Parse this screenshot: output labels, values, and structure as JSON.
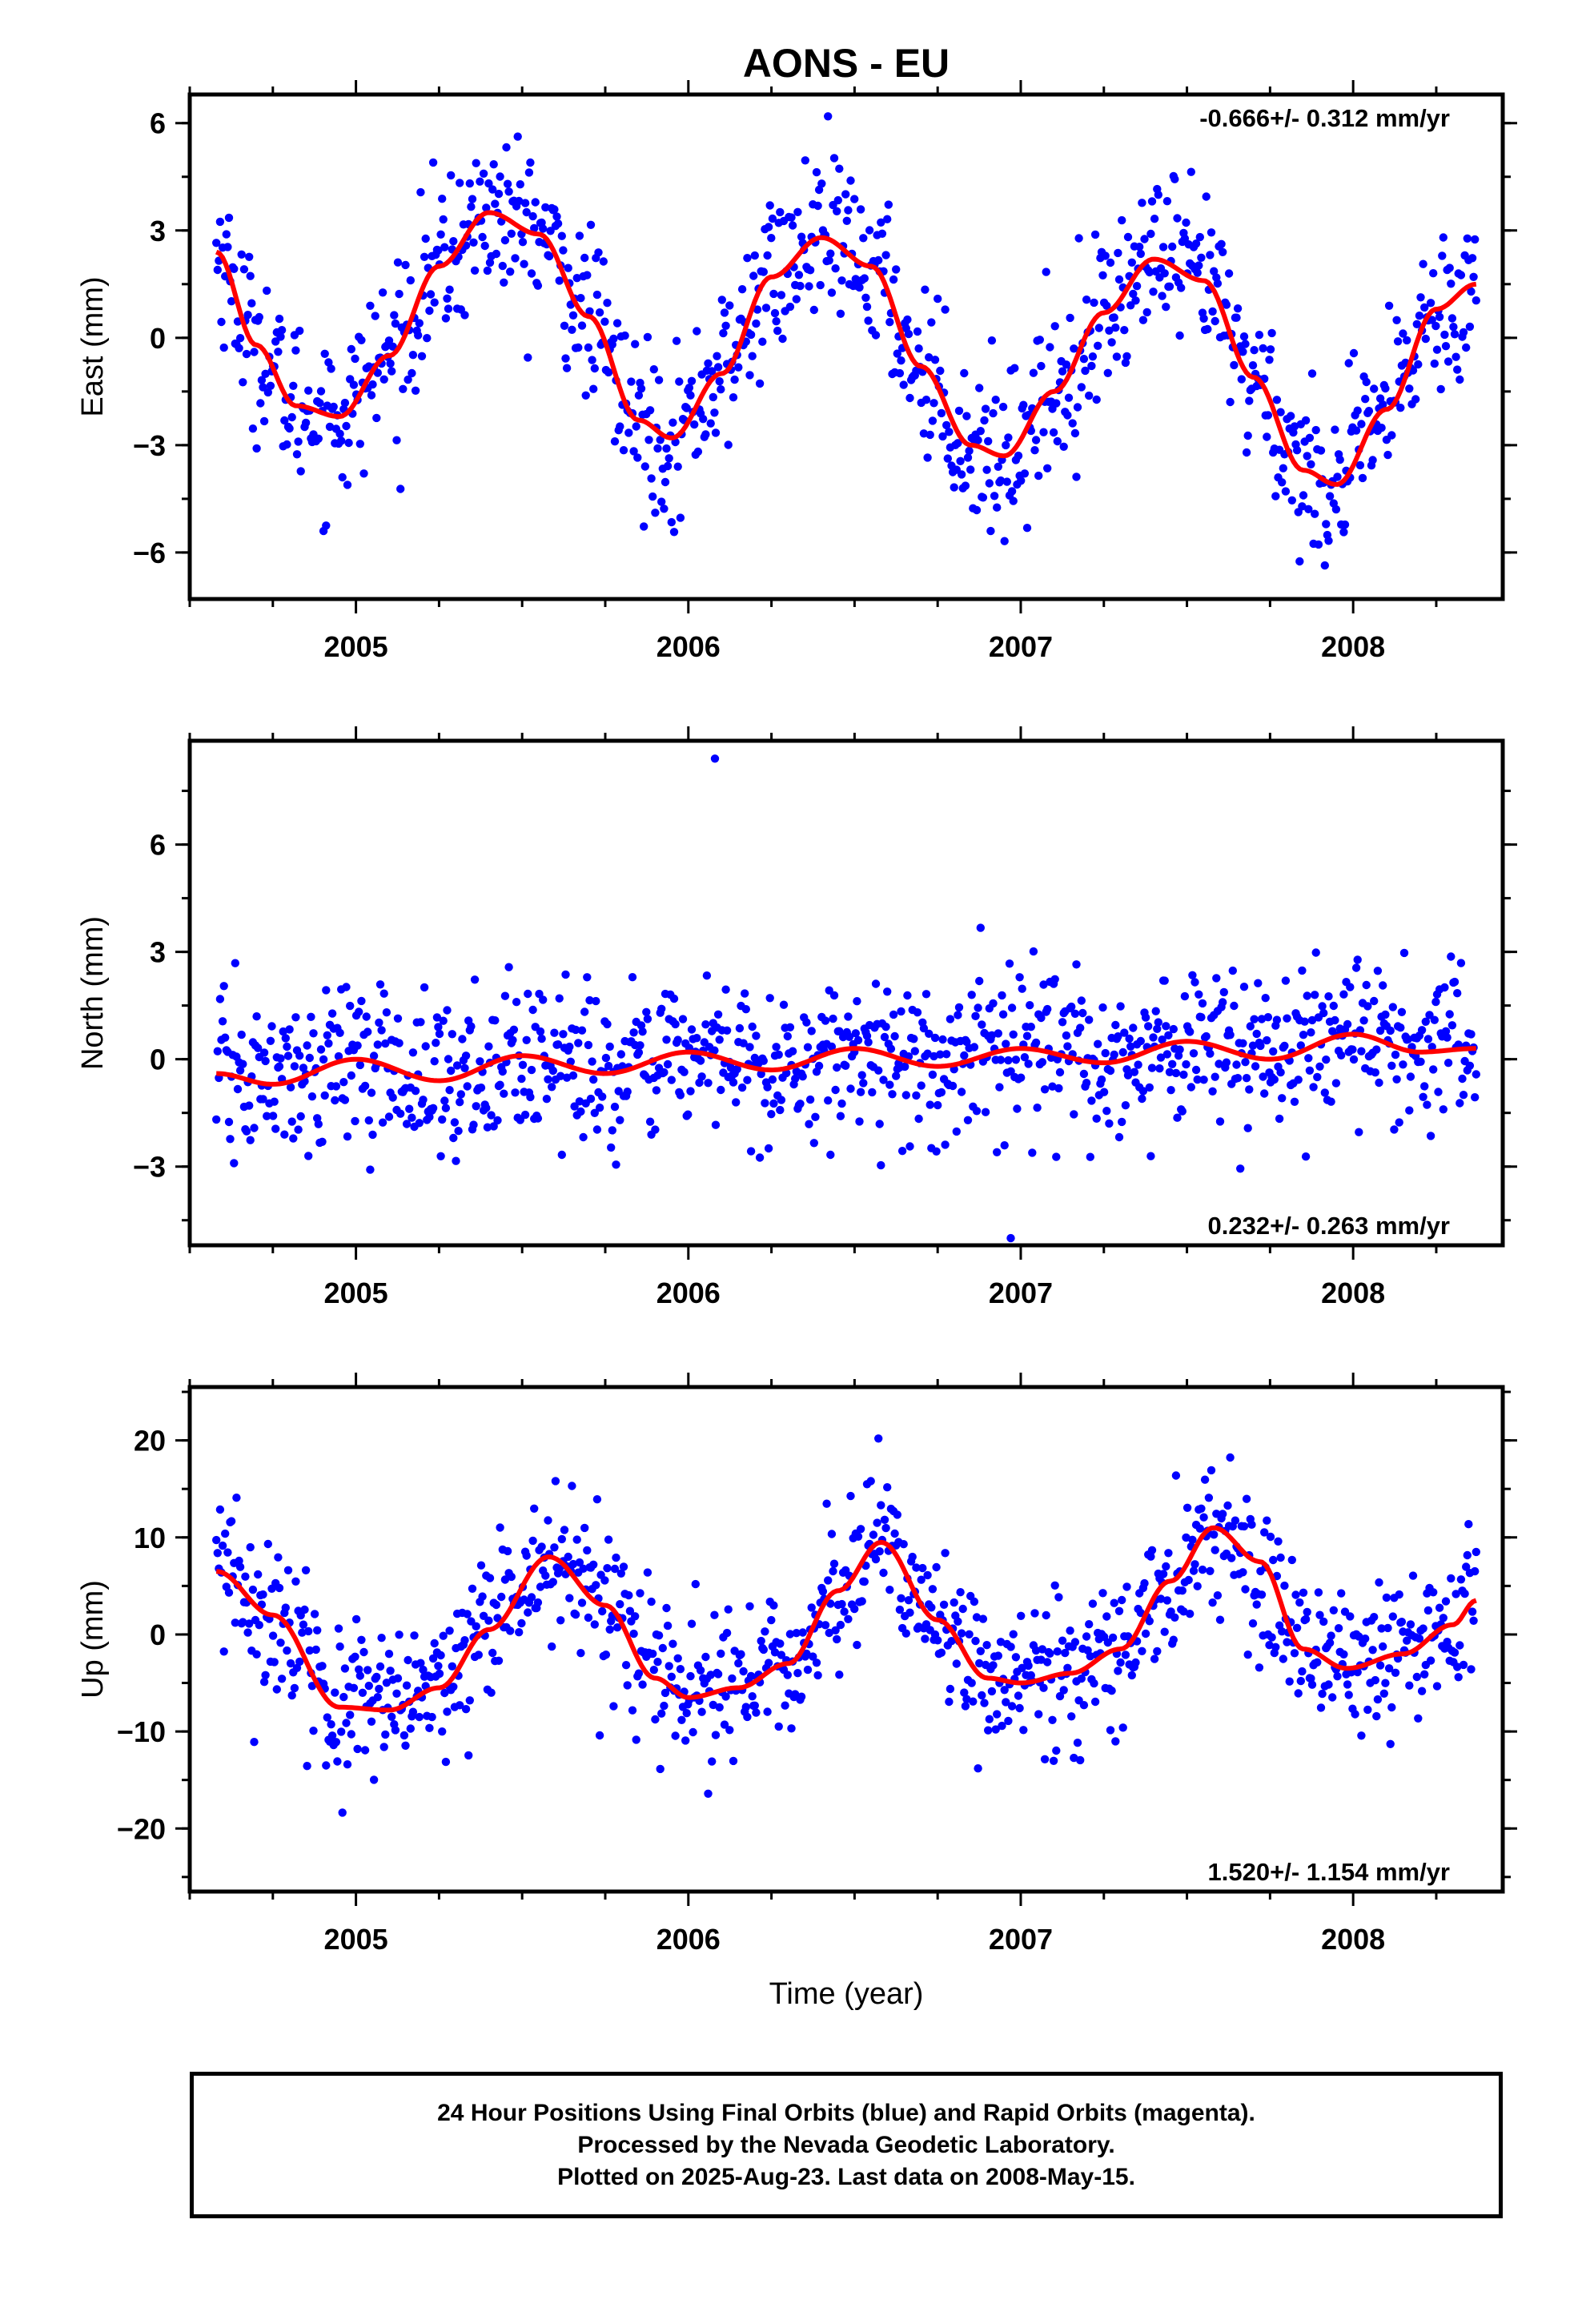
{
  "title": "AONS - EU",
  "footer": {
    "line1": "24 Hour Positions Using Final Orbits (blue) and Rapid Orbits (magenta).",
    "line2": "Processed by the Nevada Geodetic Laboratory.",
    "line3": "Plotted on 2025-Aug-23. Last data on 2008-May-15."
  },
  "colors": {
    "points": "#0000ff",
    "fit": "#ff0000",
    "frame": "#000000"
  },
  "chart_data": [
    {
      "type": "scatter",
      "ylabel": "East (mm)",
      "xlim": [
        2004.5,
        2008.45
      ],
      "ylim": [
        -7.3,
        6.8
      ],
      "yticks": [
        6,
        3,
        0,
        -3,
        -6
      ],
      "xticks": [
        2005,
        2006,
        2007,
        2008
      ],
      "rate_text": "-0.666+/- 0.312 mm/yr",
      "rate_position": "top-right",
      "data_range": [
        2004.58,
        2008.37
      ],
      "fit": {
        "name": "fit",
        "x": [
          2004.58,
          2004.7,
          2004.82,
          2004.95,
          2005.1,
          2005.25,
          2005.4,
          2005.55,
          2005.7,
          2005.85,
          2005.95,
          2006.1,
          2006.25,
          2006.4,
          2006.55,
          2006.7,
          2006.85,
          2006.95,
          2007.1,
          2007.25,
          2007.4,
          2007.55,
          2007.7,
          2007.85,
          2007.95,
          2008.1,
          2008.25,
          2008.37
        ],
        "y": [
          2.4,
          -0.2,
          -1.9,
          -2.2,
          -0.5,
          2.0,
          3.5,
          2.9,
          0.6,
          -2.3,
          -2.8,
          -1.0,
          1.7,
          2.8,
          2.0,
          -0.8,
          -3.0,
          -3.3,
          -1.5,
          0.7,
          2.2,
          1.6,
          -1.1,
          -3.7,
          -4.1,
          -2.0,
          0.8,
          1.5
        ]
      },
      "scatter_model": {
        "amplitude_mm": 3.1,
        "period_yr": 1.0,
        "phase_yr": 2005.15,
        "trend_mm_per_yr": -0.666,
        "noise_sd_mm": 1.15,
        "n_points": 1000
      }
    },
    {
      "type": "scatter",
      "ylabel": "North (mm)",
      "xlim": [
        2004.5,
        2008.45
      ],
      "ylim": [
        -5.2,
        8.9
      ],
      "yticks": [
        6,
        3,
        0,
        -3
      ],
      "xticks": [
        2005,
        2006,
        2007,
        2008
      ],
      "rate_text": "0.232+/- 0.263 mm/yr",
      "rate_position": "bottom-right",
      "data_range": [
        2004.58,
        2008.37
      ],
      "fit": {
        "name": "fit",
        "x": [
          2004.58,
          2004.75,
          2005.0,
          2005.25,
          2005.5,
          2005.75,
          2006.0,
          2006.25,
          2006.5,
          2006.75,
          2007.0,
          2007.25,
          2007.5,
          2007.75,
          2008.0,
          2008.2,
          2008.37
        ],
        "y": [
          -0.4,
          -0.7,
          0.0,
          -0.6,
          0.1,
          -0.4,
          0.2,
          -0.3,
          0.3,
          -0.2,
          0.3,
          -0.1,
          0.5,
          0.0,
          0.7,
          0.2,
          0.3
        ]
      },
      "scatter_model": {
        "amplitude_mm": 0.3,
        "period_yr": 0.5,
        "phase_yr": 2005.0,
        "trend_mm_per_yr": 0.232,
        "noise_sd_mm": 1.1,
        "n_points": 1000,
        "outliers": [
          [
            2006.08,
            8.4
          ],
          [
            2006.97,
            -5.0
          ]
        ]
      }
    },
    {
      "type": "scatter",
      "ylabel": "Up (mm)",
      "xlabel": "Time (year)",
      "xlim": [
        2004.5,
        2008.45
      ],
      "ylim": [
        -26.5,
        25.5
      ],
      "yticks": [
        20,
        10,
        0,
        -10,
        -20
      ],
      "xticks": [
        2005,
        2006,
        2007,
        2008
      ],
      "rate_text": "1.520+/- 1.154 mm/yr",
      "rate_position": "bottom-right",
      "data_range": [
        2004.58,
        2008.37
      ],
      "fit": {
        "name": "fit",
        "x": [
          2004.58,
          2004.75,
          2004.95,
          2005.1,
          2005.25,
          2005.4,
          2005.58,
          2005.75,
          2005.9,
          2006.0,
          2006.15,
          2006.3,
          2006.45,
          2006.58,
          2006.75,
          2006.9,
          2007.0,
          2007.15,
          2007.3,
          2007.45,
          2007.58,
          2007.72,
          2007.85,
          2007.98,
          2008.15,
          2008.3,
          2008.37
        ],
        "y": [
          6.5,
          2.0,
          -7.5,
          -7.8,
          -5.5,
          0.5,
          8.0,
          3.0,
          -4.5,
          -6.5,
          -5.5,
          -3.0,
          4.5,
          9.5,
          1.5,
          -4.5,
          -5.0,
          -4.0,
          -1.5,
          5.5,
          11.0,
          7.5,
          -1.5,
          -3.5,
          -2.0,
          1.0,
          3.5
        ]
      },
      "scatter_model": {
        "amplitude_mm": 8.5,
        "period_yr": 1.0,
        "phase_yr": 2005.35,
        "trend_mm_per_yr": 1.52,
        "noise_sd_mm": 4.0,
        "n_points": 1000
      }
    }
  ]
}
